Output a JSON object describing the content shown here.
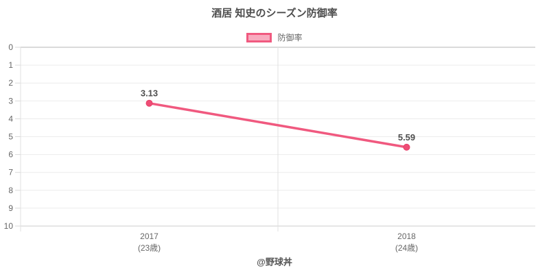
{
  "title": "酒居 知史のシーズン防御率",
  "legend": {
    "label": "防御率"
  },
  "footer": {
    "credit": "@野球丼"
  },
  "colors": {
    "line": "#f0597f",
    "point_fill": "#ee4d75",
    "point_border": "#e73d68",
    "legend_fill": "#f8abbf",
    "grid": "#ececec",
    "grid_zero": "#b5b5b5",
    "grid_last": "#cdcdcd",
    "axis_line": "#e0e0e0",
    "tick": "#d9d9d9",
    "axis_text": "#666666",
    "label_text": "#4d4d4d"
  },
  "chart_data": {
    "type": "line",
    "title": "酒居 知史のシーズン防御率",
    "categories": [
      "2017",
      "2018"
    ],
    "category_subtitles": [
      "(23歳)",
      "(24歳)"
    ],
    "series": [
      {
        "name": "防御率",
        "values": [
          3.13,
          5.59
        ],
        "point_labels": [
          "3.13",
          "5.59"
        ],
        "color": "#f0597f"
      }
    ],
    "xlabel": "",
    "ylabel": "",
    "ylim": [
      0,
      10
    ],
    "y_tick_step": 1,
    "y_axis_reversed": true,
    "grid": true,
    "legend_position": "top"
  }
}
